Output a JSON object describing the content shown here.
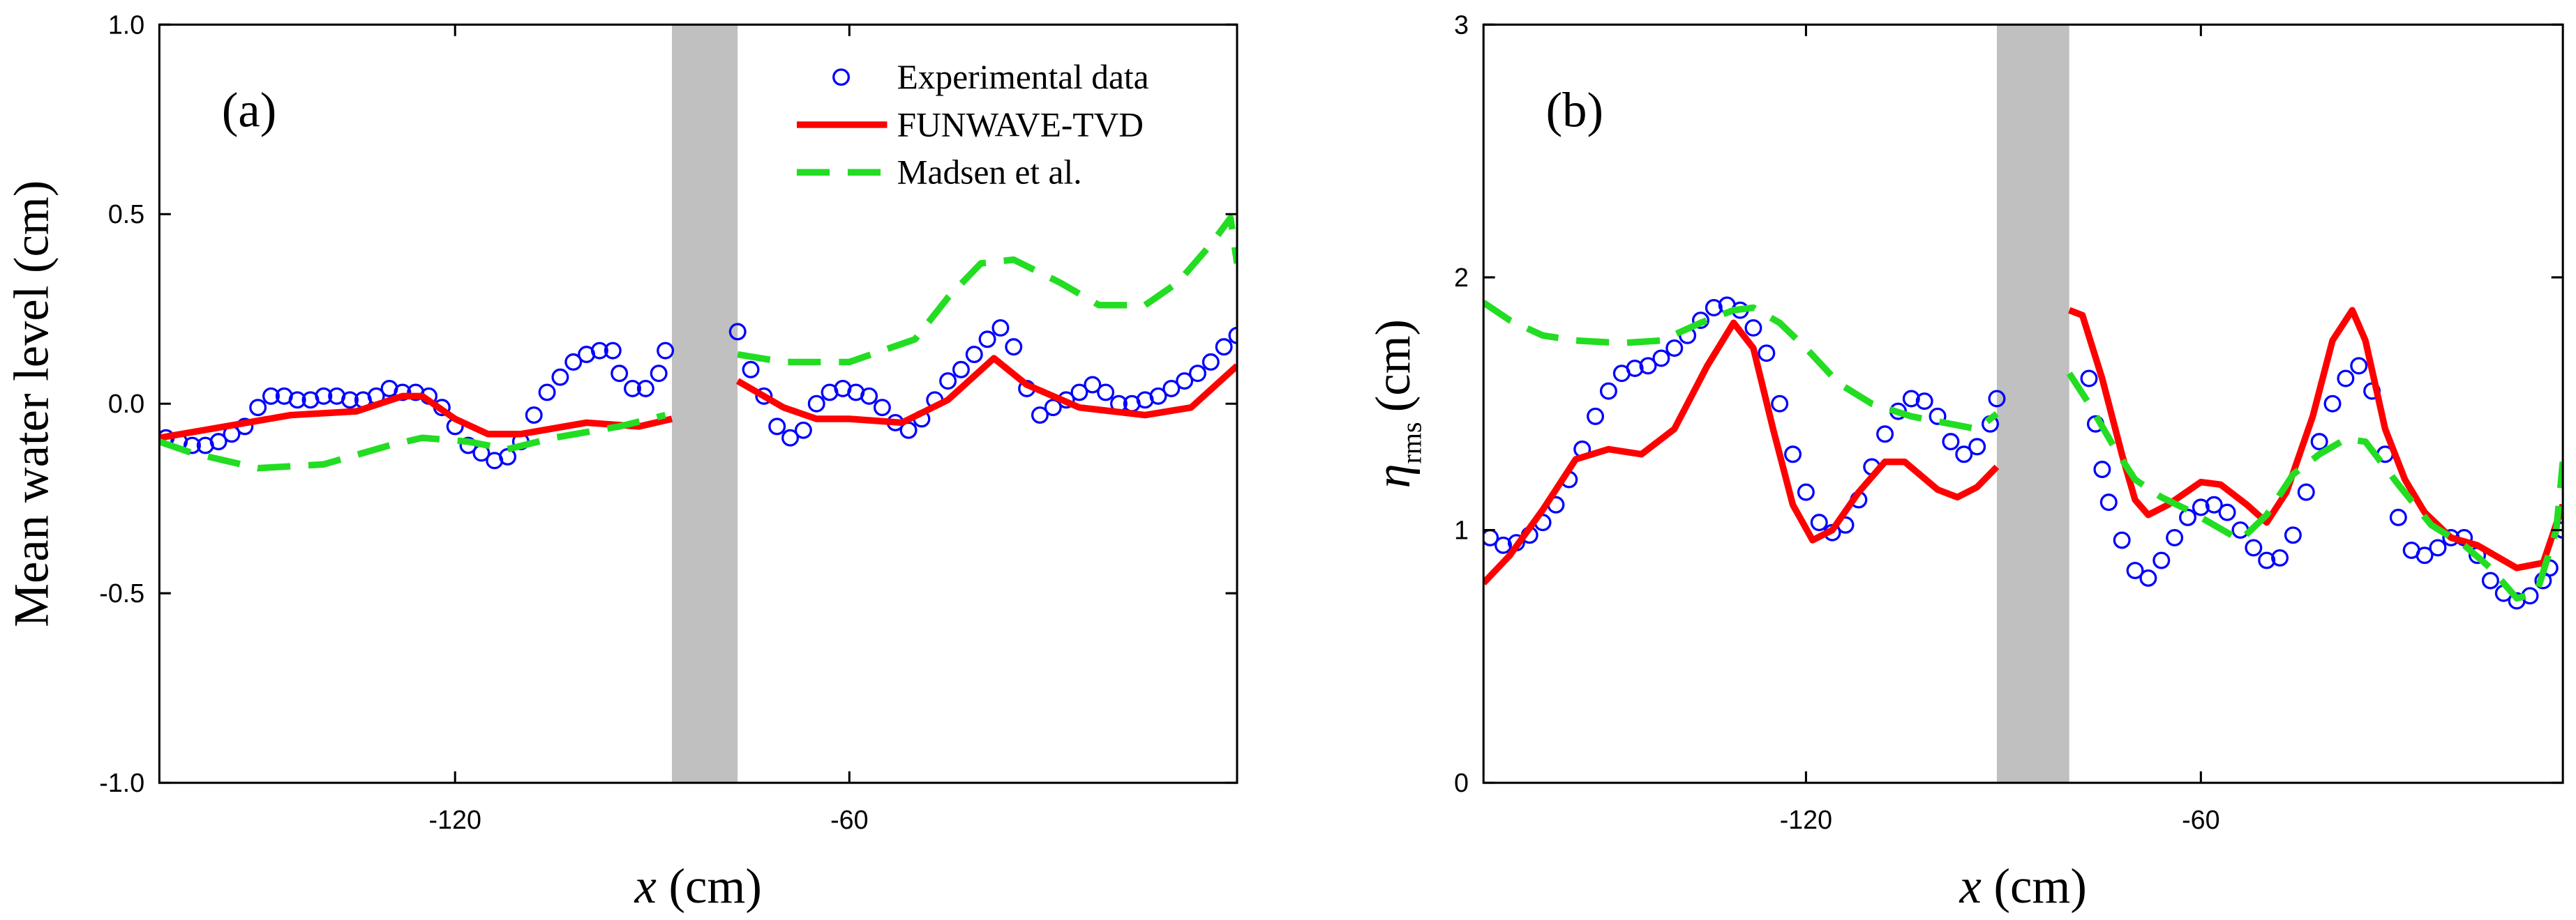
{
  "chart_data": [
    {
      "type": "line",
      "annotation": "(a)",
      "ylabel": "Mean water level (cm)",
      "xlabel": {
        "symbol": "x",
        "unit": "(cm)"
      },
      "xlim": [
        -165,
        -1
      ],
      "ylim": [
        -1.0,
        1.0
      ],
      "xticks": [
        -120,
        -60
      ],
      "yticks": [
        {
          "value": -1.0,
          "label": "-1.0"
        },
        {
          "value": -0.5,
          "label": "-0.5"
        },
        {
          "value": 0.0,
          "label": "0.0"
        },
        {
          "value": 0.5,
          "label": "0.5"
        },
        {
          "value": 1.0,
          "label": "1.0"
        }
      ],
      "shaded_region": [
        -87,
        -77
      ],
      "shaded_color": "#c0c0c0",
      "legend": "upper right",
      "series": [
        {
          "name": "Experimental data",
          "mode": "markers",
          "color": "#0000ff",
          "x": [
            -164,
            -162,
            -160,
            -158,
            -156,
            -154,
            -152,
            -150,
            -148,
            -146,
            -144,
            -142,
            -140,
            -138,
            -136,
            -134,
            -132,
            -130,
            -128,
            -126,
            -124,
            -122,
            -120,
            -118,
            -116,
            -114,
            -112,
            -110,
            -108,
            -106,
            -104,
            -102,
            -100,
            -98,
            -96,
            -95,
            -93,
            -91,
            -89,
            -88,
            -77,
            -75,
            -73,
            -71,
            -69,
            -67,
            -65,
            -63,
            -61,
            -59,
            -57,
            -55,
            -53,
            -51,
            -49,
            -47,
            -45,
            -43,
            -41,
            -39,
            -37,
            -35,
            -33,
            -31,
            -29,
            -27,
            -25,
            -23,
            -21,
            -19,
            -17,
            -15,
            -13,
            -11,
            -9,
            -7,
            -5,
            -3,
            -1
          ],
          "values": [
            -0.09,
            -0.1,
            -0.11,
            -0.11,
            -0.1,
            -0.08,
            -0.06,
            -0.01,
            0.02,
            0.02,
            0.01,
            0.01,
            0.02,
            0.02,
            0.01,
            0.01,
            0.02,
            0.04,
            0.03,
            0.03,
            0.02,
            -0.01,
            -0.06,
            -0.11,
            -0.13,
            -0.15,
            -0.14,
            -0.1,
            -0.03,
            0.03,
            0.07,
            0.11,
            0.13,
            0.14,
            0.14,
            0.08,
            0.04,
            0.04,
            0.08,
            0.14,
            0.19,
            0.09,
            0.02,
            -0.06,
            -0.09,
            -0.07,
            0.0,
            0.03,
            0.04,
            0.03,
            0.02,
            -0.01,
            -0.05,
            -0.07,
            -0.04,
            0.01,
            0.06,
            0.09,
            0.13,
            0.17,
            0.2,
            0.15,
            0.04,
            -0.03,
            -0.01,
            0.01,
            0.03,
            0.05,
            0.03,
            0.0,
            0.0,
            0.01,
            0.02,
            0.04,
            0.06,
            0.08,
            0.11,
            0.15,
            0.18
          ]
        },
        {
          "name": "FUNWAVE-TVD",
          "mode": "solid",
          "color": "#ff0000",
          "x": [
            -165,
            -155,
            -145,
            -135,
            -128,
            -125,
            -120,
            -115,
            -110,
            -100,
            -92,
            -87,
            null,
            -77,
            -70,
            -65,
            -60,
            -52,
            -45,
            -38,
            -33,
            -25,
            -15,
            -8,
            -1
          ],
          "values": [
            -0.09,
            -0.06,
            -0.03,
            -0.02,
            0.02,
            0.02,
            -0.04,
            -0.08,
            -0.08,
            -0.05,
            -0.06,
            -0.04,
            null,
            0.06,
            -0.01,
            -0.04,
            -0.04,
            -0.05,
            0.01,
            0.12,
            0.05,
            -0.01,
            -0.03,
            -0.01,
            0.1
          ]
        },
        {
          "name": "Madsen et al.",
          "mode": "dashed",
          "color": "#22dd22",
          "x": [
            -165,
            -160,
            -150,
            -140,
            -130,
            -125,
            -118,
            -112,
            -105,
            -95,
            -88,
            null,
            -77,
            -70,
            -60,
            -50,
            -45,
            -40,
            -35,
            -28,
            -22,
            -15,
            -10,
            -5,
            -2,
            -1
          ],
          "values": [
            -0.1,
            -0.13,
            -0.17,
            -0.16,
            -0.11,
            -0.09,
            -0.1,
            -0.12,
            -0.09,
            -0.06,
            -0.03,
            null,
            0.13,
            0.11,
            0.11,
            0.17,
            0.28,
            0.37,
            0.38,
            0.32,
            0.26,
            0.26,
            0.32,
            0.42,
            0.49,
            0.37
          ]
        }
      ]
    },
    {
      "type": "line",
      "annotation": "(b)",
      "ylabel": {
        "symbol": "η",
        "subscript": "rms",
        "unit": "(cm)"
      },
      "xlabel": {
        "symbol": "x",
        "unit": "(cm)"
      },
      "xlim": [
        -169,
        -5
      ],
      "ylim": [
        0,
        3
      ],
      "xticks": [
        -120,
        -60
      ],
      "yticks": [
        0,
        1,
        2,
        3
      ],
      "shaded_region": [
        -91,
        -80
      ],
      "shaded_color": "#c0c0c0",
      "series": [
        {
          "mode": "markers",
          "color": "#0000ff",
          "x": [
            -168,
            -166,
            -164,
            -162,
            -160,
            -158,
            -156,
            -154,
            -152,
            -150,
            -148,
            -146,
            -144,
            -142,
            -140,
            -138,
            -136,
            -134,
            -132,
            -130,
            -128,
            -126,
            -124,
            -122,
            -120,
            -118,
            -116,
            -114,
            -112,
            -110,
            -108,
            -106,
            -104,
            -102,
            -100,
            -98,
            -96,
            -94,
            -92,
            -91,
            -77,
            -76,
            -75,
            -74,
            -72,
            -70,
            -68,
            -66,
            -64,
            -62,
            -60,
            -58,
            -56,
            -54,
            -52,
            -50,
            -48,
            -46,
            -44,
            -42,
            -40,
            -38,
            -36,
            -34,
            -32,
            -30,
            -28,
            -26,
            -24,
            -22,
            -20,
            -18,
            -16,
            -14,
            -12,
            -10,
            -8,
            -7,
            -5
          ],
          "values": [
            0.97,
            0.94,
            0.95,
            0.98,
            1.03,
            1.1,
            1.2,
            1.32,
            1.45,
            1.55,
            1.62,
            1.64,
            1.65,
            1.68,
            1.72,
            1.77,
            1.83,
            1.88,
            1.89,
            1.87,
            1.8,
            1.7,
            1.5,
            1.3,
            1.15,
            1.03,
            0.99,
            1.02,
            1.12,
            1.25,
            1.38,
            1.47,
            1.52,
            1.51,
            1.45,
            1.35,
            1.3,
            1.33,
            1.42,
            1.52,
            1.6,
            1.42,
            1.24,
            1.11,
            0.96,
            0.84,
            0.81,
            0.88,
            0.97,
            1.05,
            1.09,
            1.1,
            1.07,
            1.0,
            0.93,
            0.88,
            0.89,
            0.98,
            1.15,
            1.35,
            1.5,
            1.6,
            1.65,
            1.55,
            1.3,
            1.05,
            0.92,
            0.9,
            0.93,
            0.97,
            0.97,
            0.9,
            0.8,
            0.75,
            0.72,
            0.74,
            0.8,
            0.85,
            1.0
          ]
        },
        {
          "mode": "solid",
          "color": "#ff0000",
          "x": [
            -169,
            -165,
            -160,
            -155,
            -150,
            -145,
            -140,
            -135,
            -131,
            -128,
            -125,
            -122,
            -119,
            -116,
            -112,
            -108,
            -105,
            -100,
            -97,
            -94,
            -91,
            null,
            -80,
            -78,
            -75,
            -72,
            -70,
            -68,
            -65,
            -60,
            -57,
            -53,
            -50,
            -47,
            -43,
            -40,
            -37,
            -35,
            -32,
            -29,
            -26,
            -22,
            -18,
            -14,
            -12,
            -8,
            -5
          ],
          "values": [
            0.79,
            0.9,
            1.08,
            1.28,
            1.32,
            1.3,
            1.4,
            1.65,
            1.82,
            1.72,
            1.4,
            1.1,
            0.96,
            1.0,
            1.15,
            1.27,
            1.27,
            1.16,
            1.13,
            1.17,
            1.25,
            null,
            1.87,
            1.85,
            1.6,
            1.3,
            1.12,
            1.06,
            1.1,
            1.19,
            1.18,
            1.1,
            1.03,
            1.15,
            1.45,
            1.75,
            1.87,
            1.75,
            1.4,
            1.2,
            1.07,
            0.97,
            0.94,
            0.88,
            0.85,
            0.87,
            1.1
          ]
        },
        {
          "mode": "dashed",
          "color": "#22dd22",
          "x": [
            -169,
            -165,
            -160,
            -155,
            -148,
            -142,
            -136,
            -131,
            -128,
            -124,
            -120,
            -115,
            -110,
            -104,
            -98,
            -94,
            -91,
            null,
            -80,
            -77,
            -73,
            -70,
            -66,
            -62,
            -58,
            -54,
            -50,
            -46,
            -42,
            -38,
            -35,
            -30,
            -25,
            -20,
            -16,
            -12,
            -9,
            -6,
            -5
          ],
          "values": [
            1.9,
            1.83,
            1.77,
            1.75,
            1.74,
            1.75,
            1.82,
            1.87,
            1.88,
            1.82,
            1.72,
            1.58,
            1.5,
            1.45,
            1.42,
            1.4,
            1.46,
            null,
            1.62,
            1.5,
            1.32,
            1.2,
            1.13,
            1.08,
            1.02,
            0.96,
            1.06,
            1.22,
            1.3,
            1.36,
            1.35,
            1.18,
            1.02,
            0.94,
            0.85,
            0.73,
            0.75,
            1.0,
            1.27
          ]
        }
      ]
    }
  ]
}
